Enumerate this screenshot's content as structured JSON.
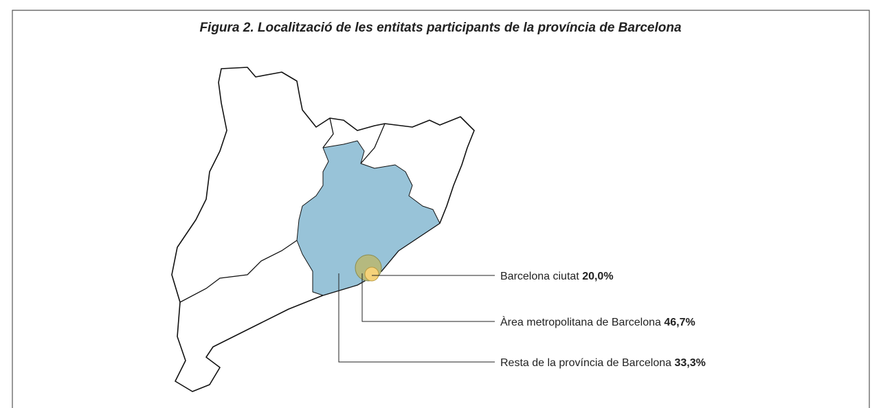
{
  "title": "Figura 2. Localització de les entitats participants de la província de Barcelona",
  "items": [
    {
      "label": "Barcelona ciutat",
      "value": "20,0%"
    },
    {
      "label": "Àrea metropolitana de Barcelona",
      "value": "46,7%"
    },
    {
      "label": "Resta de la província de Barcelona",
      "value": "33,3%"
    }
  ]
}
